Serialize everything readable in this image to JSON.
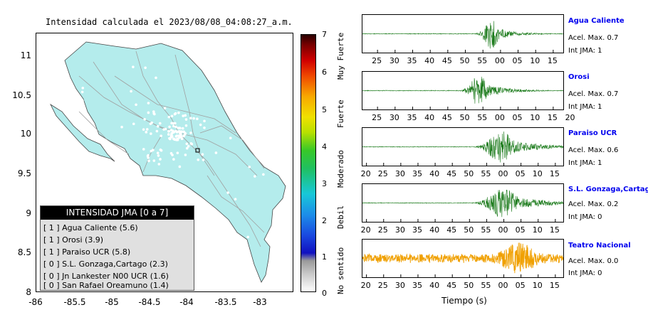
{
  "map": {
    "title": "Intensidad calculada el 2023/08/08_04:08:27_a.m.",
    "yticks": [
      "11",
      "10.5",
      "10",
      "9.5",
      "9",
      "8.5",
      "8"
    ],
    "xticks": [
      "-86",
      "-85.5",
      "-85",
      "-84.5",
      "-84",
      "-83.5",
      "-83"
    ],
    "land_color": "#b4ecec"
  },
  "legend": {
    "title": "INTENSIDAD JMA [0 a 7]",
    "rows": [
      "[ 1 ]  Agua Caliente (5.6)",
      "[ 1 ]  Orosi (3.9)",
      "[ 1 ]  Paraiso UCR (5.8)",
      "[ 0 ]  S.L. Gonzaga,Cartago (2.3)",
      "[ 0 ]  Jn Lankester N00 UCR (1.6)",
      "[ 0 ]  San Rafael Oreamuno (1.4)"
    ]
  },
  "colorbar": {
    "ticks": [
      "7",
      "6",
      "5",
      "4",
      "3",
      "2",
      "1",
      "0"
    ],
    "labels": [
      "Muy Fuerte",
      "Fuerte",
      "Moderado",
      "Debil",
      "No sentido"
    ]
  },
  "stations": [
    {
      "name": "Agua Caliente",
      "acel": "Acel. Max. 0.7",
      "int": "Int JMA: 1",
      "color": "#1a7a1a",
      "ticks": [
        "25",
        "30",
        "35",
        "40",
        "45",
        "50",
        "55",
        "00",
        "05",
        "10",
        "15"
      ],
      "peak": 0.64,
      "amp": 0.9,
      "width": 0.04
    },
    {
      "name": "Orosi",
      "acel": "Acel. Max. 0.7",
      "int": "Int JMA: 1",
      "color": "#1a7a1a",
      "ticks": [
        "25",
        "30",
        "35",
        "40",
        "45",
        "50",
        "55",
        "00",
        "05",
        "10",
        "15",
        "20"
      ],
      "peak": 0.58,
      "amp": 0.9,
      "width": 0.05
    },
    {
      "name": "Paraiso UCR",
      "acel": "Acel. Max. 0.6",
      "int": "Int JMA: 1",
      "color": "#1a7a1a",
      "ticks": [
        "20",
        "25",
        "30",
        "35",
        "40",
        "45",
        "50",
        "55",
        "00",
        "05",
        "10",
        "15"
      ],
      "peak": 0.69,
      "amp": 0.95,
      "width": 0.07
    },
    {
      "name": "S.L. Gonzaga,Cartago",
      "acel": "Acel. Max. 0.2",
      "int": "Int JMA: 0",
      "color": "#1a7a1a",
      "ticks": [
        "20",
        "25",
        "30",
        "35",
        "40",
        "45",
        "50",
        "55",
        "00",
        "05",
        "10",
        "15"
      ],
      "peak": 0.7,
      "amp": 0.9,
      "width": 0.08
    },
    {
      "name": "Teatro Nacional",
      "acel": "Acel. Max. 0.0",
      "int": "Int JMA: 0",
      "color": "#f0a000",
      "ticks": [
        "20",
        "25",
        "30",
        "35",
        "40",
        "45",
        "50",
        "55",
        "00",
        "05",
        "10",
        "15"
      ],
      "peak": 0.78,
      "amp": 0.95,
      "width": 0.1,
      "noisy": true
    }
  ],
  "xaxis_label": "Tiempo (s)"
}
